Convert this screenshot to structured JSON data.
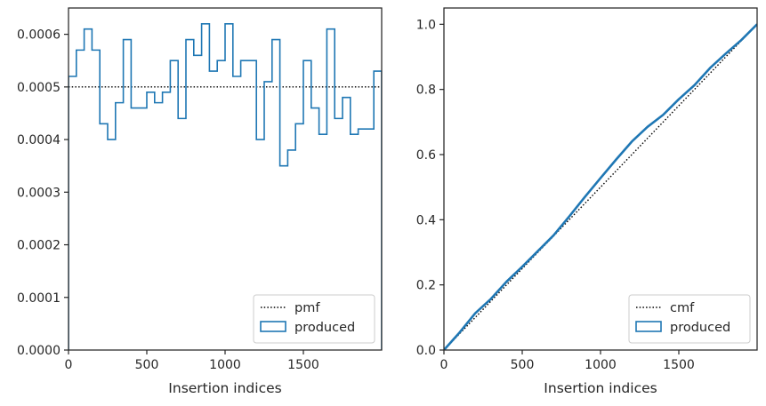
{
  "chart_data": [
    {
      "type": "step",
      "xlabel": "Insertion indices",
      "ylabel": "",
      "xlim": [
        0,
        2000
      ],
      "ylim": [
        0,
        0.00065
      ],
      "xticks": [
        0,
        500,
        1000,
        1500
      ],
      "xtick_labels": [
        "0",
        "500",
        "1000",
        "1500"
      ],
      "yticks": [
        0,
        0.0001,
        0.0002,
        0.0003,
        0.0004,
        0.0005,
        0.0006
      ],
      "ytick_labels": [
        "0.0000",
        "0.0001",
        "0.0002",
        "0.0003",
        "0.0004",
        "0.0005",
        "0.0006"
      ],
      "grid": false,
      "legend_position": "lower right",
      "series": [
        {
          "name": "pmf",
          "kind": "reference_line",
          "style": "dotted",
          "color": "#000000",
          "value": 0.0005
        },
        {
          "name": "produced",
          "kind": "step_histogram",
          "color": "#1f77b4",
          "bin_edges": [
            0,
            50,
            100,
            150,
            200,
            250,
            300,
            350,
            400,
            450,
            500,
            550,
            600,
            650,
            700,
            750,
            800,
            850,
            900,
            950,
            1000,
            1050,
            1100,
            1150,
            1200,
            1250,
            1300,
            1350,
            1400,
            1450,
            1500,
            1550,
            1600,
            1650,
            1700,
            1750,
            1800,
            1850,
            1900,
            1950,
            2000
          ],
          "values": [
            0.00052,
            0.00057,
            0.00061,
            0.00057,
            0.00043,
            0.0004,
            0.00047,
            0.00059,
            0.00046,
            0.00046,
            0.00049,
            0.00047,
            0.00049,
            0.00055,
            0.00044,
            0.00059,
            0.00056,
            0.00062,
            0.00053,
            0.00055,
            0.00062,
            0.00052,
            0.00055,
            0.00055,
            0.0004,
            0.00051,
            0.00059,
            0.00035,
            0.00038,
            0.00043,
            0.00055,
            0.00046,
            0.00041,
            0.00061,
            0.00044,
            0.00048,
            0.00041,
            0.00042,
            0.00042,
            0.00053
          ]
        }
      ]
    },
    {
      "type": "step",
      "xlabel": "Insertion indices",
      "ylabel": "",
      "xlim": [
        0,
        2000
      ],
      "ylim": [
        0,
        1.05
      ],
      "xticks": [
        0,
        500,
        1000,
        1500
      ],
      "xtick_labels": [
        "0",
        "500",
        "1000",
        "1500"
      ],
      "yticks": [
        0,
        0.2,
        0.4,
        0.6,
        0.8,
        1.0
      ],
      "ytick_labels": [
        "0.0",
        "0.2",
        "0.4",
        "0.6",
        "0.8",
        "1.0"
      ],
      "grid": false,
      "legend_position": "lower right",
      "series": [
        {
          "name": "cmf",
          "kind": "reference_line",
          "style": "dotted",
          "color": "#000000",
          "from": [
            0,
            0
          ],
          "to": [
            2000,
            1.0
          ]
        },
        {
          "name": "produced",
          "kind": "cumulative_step",
          "color": "#1f77b4",
          "x": [
            0,
            100,
            200,
            300,
            400,
            500,
            600,
            700,
            800,
            900,
            1000,
            1100,
            1200,
            1300,
            1400,
            1500,
            1600,
            1700,
            1800,
            1900,
            2000
          ],
          "values": [
            0.0,
            0.054,
            0.113,
            0.157,
            0.21,
            0.256,
            0.304,
            0.352,
            0.41,
            0.47,
            0.528,
            0.585,
            0.64,
            0.685,
            0.722,
            0.77,
            0.813,
            0.866,
            0.91,
            0.952,
            1.0
          ]
        }
      ]
    }
  ]
}
